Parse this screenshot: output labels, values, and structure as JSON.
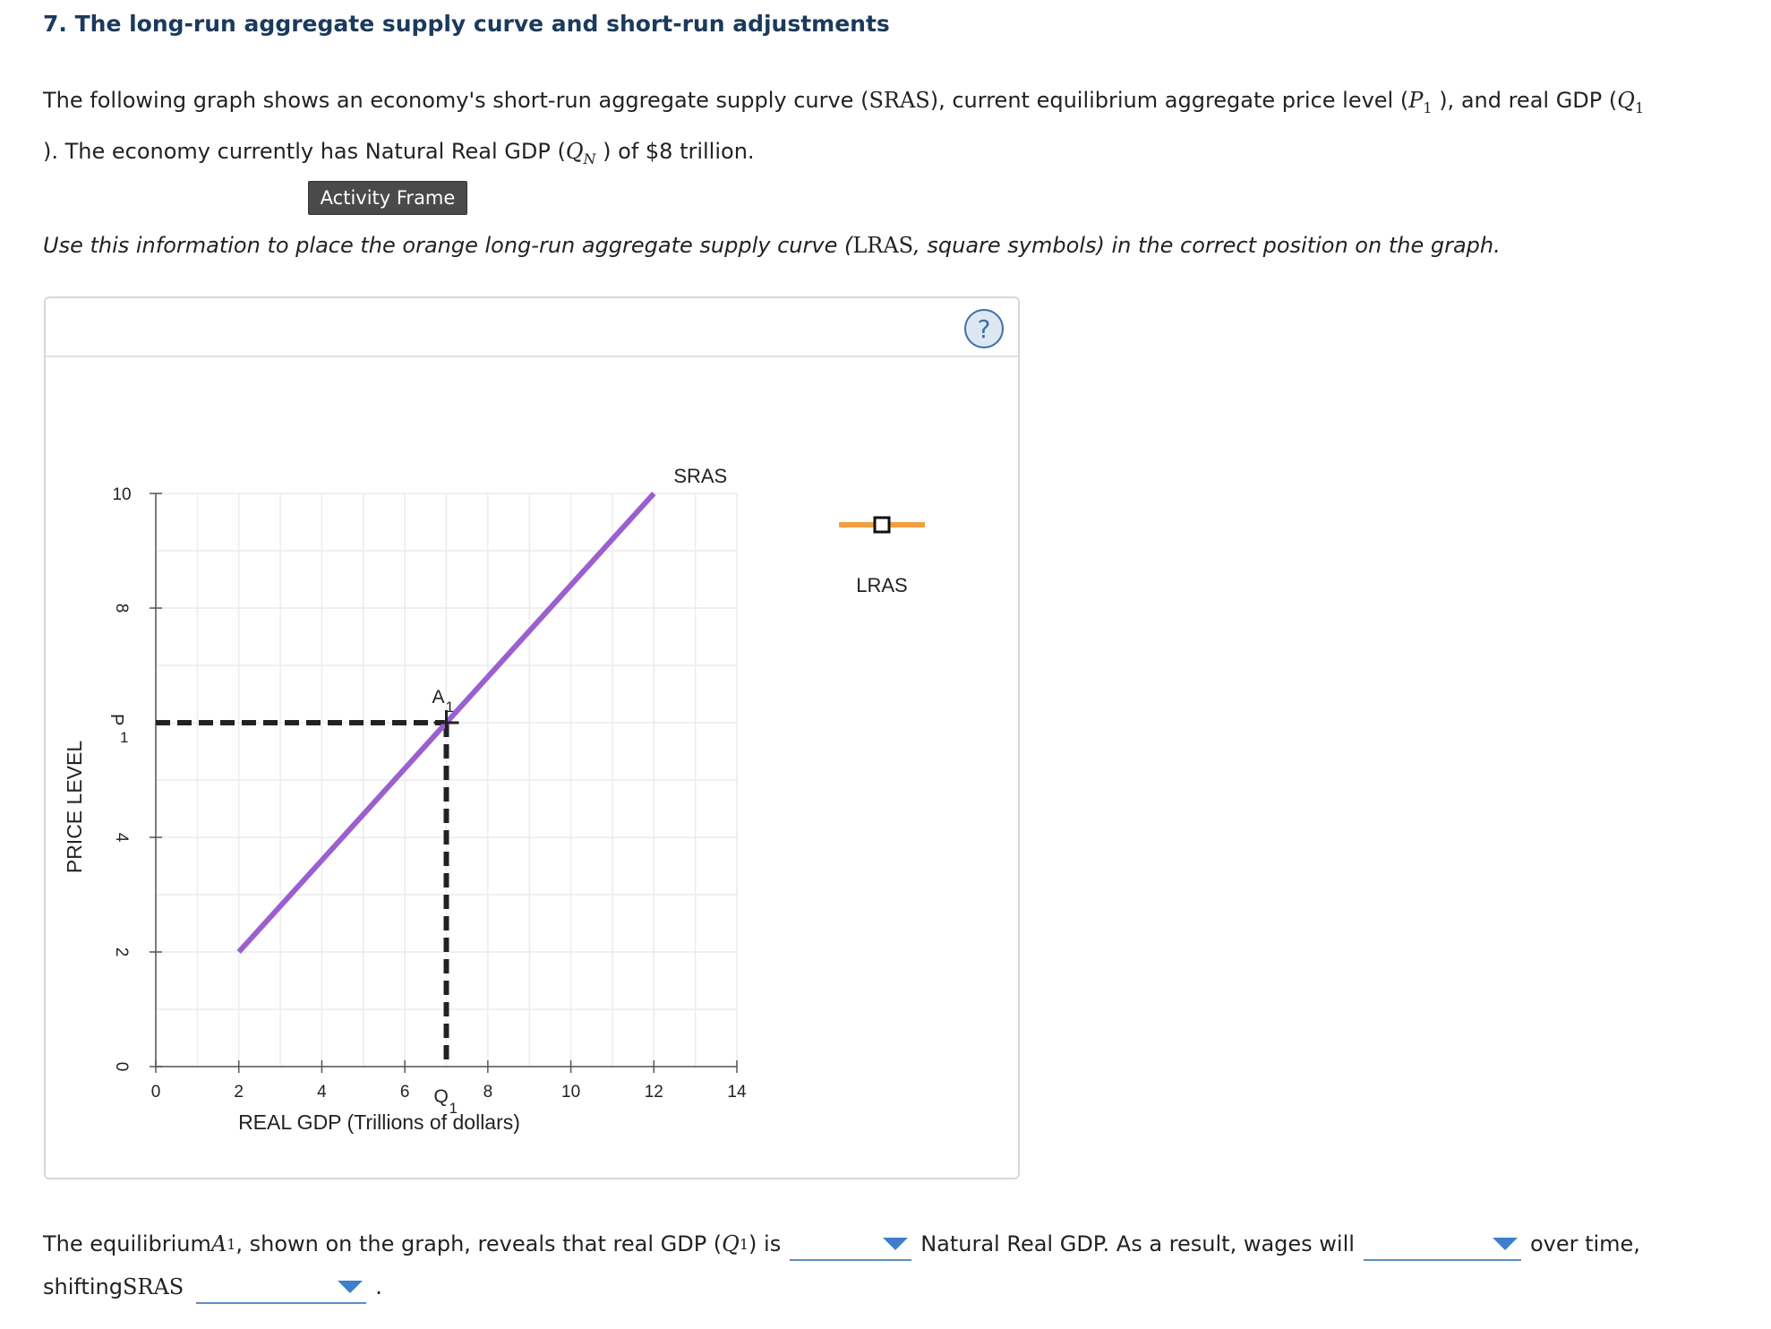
{
  "title": "7. The long-run aggregate supply curve and short-run adjustments",
  "intro": {
    "t1": "The following graph shows an economy's short-run aggregate supply curve (",
    "sras": "SRAS",
    "t2": "), current equilibrium aggregate price level (",
    "p1": "P",
    "p1_sub": "1",
    "t3": " ), and real GDP (",
    "q1": "Q",
    "q1_sub": "1",
    "t4": "). The economy currently has Natural Real GDP (",
    "qn": "Q",
    "qn_sub": "N",
    "t5": " ) of $8 trillion."
  },
  "activity_button": "Activity Frame",
  "instruction": {
    "t1": "Use this information to place the orange long-run aggregate supply curve (",
    "lras": "LRAS",
    "t2": ", square symbols) in the correct position on the graph."
  },
  "help_label": "?",
  "chart_data": {
    "type": "line",
    "xlabel": "REAL GDP (Trillions of dollars)",
    "ylabel": "PRICE LEVEL",
    "xlim": [
      0,
      14
    ],
    "ylim": [
      0,
      10
    ],
    "x_ticks": [
      0,
      2,
      4,
      6,
      8,
      10,
      12,
      14
    ],
    "y_ticks": [
      0,
      2,
      4,
      8,
      10
    ],
    "grid": true,
    "series": [
      {
        "name": "SRAS",
        "color": "#9b5fcf",
        "points": [
          [
            2,
            2
          ],
          [
            12,
            10
          ]
        ]
      }
    ],
    "equilibrium": {
      "label": "A",
      "label_sub": "1",
      "x": 7,
      "y": 6
    },
    "dashed_guides": true,
    "x_special_label": {
      "text": "Q",
      "sub": "1",
      "at": 7
    },
    "y_special_label": {
      "text": "P",
      "sub": "1",
      "at": 6
    },
    "palette": {
      "label": "LRAS",
      "color": "#f0a040",
      "marker": "square"
    }
  },
  "answer": {
    "t1": "The equilibrium ",
    "a1": "A",
    "a1_sub": "1",
    "t2": " , shown on the graph, reveals that real GDP (",
    "q1": "Q",
    "q1_sub": "1",
    "t3": ") is",
    "t4": "Natural Real GDP. As a result, wages will",
    "t5": "over time,",
    "t6": "shifting ",
    "sras": "SRAS",
    "t7": "."
  }
}
